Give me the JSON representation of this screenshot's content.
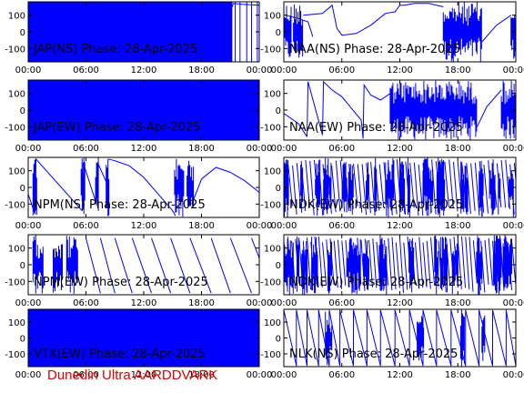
{
  "footer": "Dunedin Ultra AARDDVARK",
  "colors": {
    "trace": "#0000ff",
    "footer": "#e00000",
    "axis": "#000000"
  },
  "chart_data": [
    {
      "type": "line",
      "title": "JAP(NS) Phase: 28-Apr-2025",
      "xlim": [
        0,
        24
      ],
      "ylim": [
        -180,
        180
      ],
      "yticks": [
        100,
        0,
        -100
      ],
      "xticks": [
        "00:00",
        "06:00",
        "12:00",
        "18:00",
        "00:00"
      ],
      "regime": "noise",
      "noise_until": 21.2,
      "sparse_spikes": [
        21.5,
        22.0,
        22.7,
        23.2,
        23.8
      ],
      "series": [
        {
          "x": [
            21.2,
            21.3,
            22.2,
            24.0
          ],
          "y": [
            150,
            170,
            165,
            160
          ]
        }
      ]
    },
    {
      "type": "line",
      "title": "NAA(NS) Phase: 28-Apr-2025",
      "xlim": [
        0,
        24
      ],
      "ylim": [
        -180,
        180
      ],
      "yticks": [
        100,
        0,
        -100
      ],
      "xticks": [
        "00:00",
        "06:00",
        "12:00",
        "18:00",
        "00:00"
      ],
      "regime": "mixed",
      "noise_ranges": [
        [
          0,
          0.8
        ],
        [
          1.0,
          2.0
        ],
        [
          16.5,
          20.5
        ],
        [
          23.5,
          24
        ]
      ],
      "series": [
        {
          "x": [
            2.0,
            4.0,
            5.0,
            5.5,
            6.0,
            7.5,
            9.0,
            10.5,
            11.5,
            12.0,
            12.5,
            13.5,
            15.0,
            16.5
          ],
          "y": [
            100,
            110,
            160,
            20,
            -20,
            -10,
            40,
            110,
            120,
            160,
            160,
            170,
            170,
            150
          ]
        },
        {
          "x": [
            0.2,
            1.5,
            2.5,
            3.0
          ],
          "y": [
            100,
            80,
            60,
            -30
          ]
        },
        {
          "x": [
            20.5,
            22.0,
            23.5
          ],
          "y": [
            -60,
            40,
            100
          ]
        }
      ]
    },
    {
      "type": "line",
      "title": "JAP(EW) Phase: 28-Apr-2025",
      "xlim": [
        0,
        24
      ],
      "ylim": [
        -180,
        180
      ],
      "yticks": [
        100,
        0,
        -100
      ],
      "xticks": [
        "00:00",
        "06:00",
        "12:00",
        "18:00",
        "00:00"
      ],
      "regime": "noise",
      "noise_until": 24,
      "sparse_spikes": [],
      "series": []
    },
    {
      "type": "line",
      "title": "NAA(EW) Phase: 28-Apr-2025",
      "xlim": [
        0,
        24
      ],
      "ylim": [
        -180,
        180
      ],
      "yticks": [
        100,
        0,
        -100
      ],
      "xticks": [
        "00:00",
        "06:00",
        "12:00",
        "18:00",
        "00:00"
      ],
      "regime": "mixed",
      "noise_ranges": [
        [
          11.0,
          20.0
        ],
        [
          22.5,
          24
        ]
      ],
      "series": [
        {
          "x": [
            0,
            1.5,
            2.4
          ],
          "y": [
            -20,
            -80,
            -160
          ]
        },
        {
          "x": [
            2.4,
            2.5,
            4.0
          ],
          "y": [
            -160,
            170,
            -150
          ]
        },
        {
          "x": [
            4.0,
            4.1,
            5.0,
            6.0,
            8.0,
            8.2
          ],
          "y": [
            -150,
            170,
            120,
            80,
            -60,
            -170
          ]
        },
        {
          "x": [
            8.2,
            8.3,
            9.0,
            10.0,
            11.0
          ],
          "y": [
            -170,
            150,
            90,
            60,
            100
          ]
        },
        {
          "x": [
            20.0,
            21.0,
            22.5
          ],
          "y": [
            -100,
            20,
            120
          ]
        }
      ]
    },
    {
      "type": "line",
      "title": "NPM(NS) Phase: 28-Apr-2025",
      "xlim": [
        0,
        24
      ],
      "ylim": [
        -180,
        180
      ],
      "yticks": [
        100,
        0,
        -100
      ],
      "xticks": [
        "00:00",
        "06:00",
        "12:00",
        "18:00",
        "00:00"
      ],
      "regime": "wrap",
      "noise_ranges": [
        [
          0.5,
          0.9
        ],
        [
          5.5,
          5.9
        ],
        [
          7.0,
          7.3
        ],
        [
          8.1,
          8.4
        ],
        [
          15.2,
          16.2
        ],
        [
          16.5,
          17.2
        ]
      ],
      "series": [
        {
          "x": [
            0,
            0.7
          ],
          "y": [
            -40,
            -160
          ]
        },
        {
          "x": [
            0.7,
            0.8,
            5.6
          ],
          "y": [
            -160,
            170,
            -140
          ]
        },
        {
          "x": [
            5.6,
            5.7,
            7.1
          ],
          "y": [
            -140,
            150,
            -100
          ]
        },
        {
          "x": [
            7.1,
            7.2,
            8.2
          ],
          "y": [
            -100,
            150,
            20
          ]
        },
        {
          "x": [
            8.3,
            9.0,
            10.5,
            12.0,
            13.5,
            15.0,
            15.3
          ],
          "y": [
            170,
            160,
            130,
            60,
            -40,
            -140,
            -170
          ]
        },
        {
          "x": [
            17.0,
            18.0,
            19.5,
            21.0,
            22.5,
            24.0
          ],
          "y": [
            -100,
            50,
            120,
            90,
            40,
            -30
          ]
        }
      ]
    },
    {
      "type": "line",
      "title": "NDK(EW) Phase: 28-Apr-2025",
      "xlim": [
        0,
        24
      ],
      "ylim": [
        -180,
        180
      ],
      "yticks": [
        100,
        0,
        -100
      ],
      "xticks": [
        "00:00",
        "06:00",
        "12:00",
        "18:00",
        "00:00"
      ],
      "regime": "dense_wrap",
      "period": 0.45,
      "series": []
    },
    {
      "type": "line",
      "title": "NPM(EW) Phase: 28-Apr-2025",
      "xlim": [
        0,
        24
      ],
      "ylim": [
        -180,
        180
      ],
      "yticks": [
        100,
        0,
        -100
      ],
      "xticks": [
        "00:00",
        "06:00",
        "12:00",
        "18:00",
        "00:00"
      ],
      "regime": "wrap",
      "noise_ranges": [
        [
          0.5,
          1.6
        ],
        [
          2.6,
          3.6
        ],
        [
          4.0,
          5.2
        ]
      ],
      "series": [
        {
          "x": [
            6.0,
            7.5
          ],
          "y": [
            160,
            -170
          ]
        },
        {
          "x": [
            7.5,
            9.0
          ],
          "y": [
            160,
            -170
          ]
        },
        {
          "x": [
            9.0,
            10.8
          ],
          "y": [
            160,
            -170
          ]
        },
        {
          "x": [
            10.8,
            12.8
          ],
          "y": [
            160,
            -170
          ]
        },
        {
          "x": [
            12.8,
            14.8
          ],
          "y": [
            160,
            -170
          ]
        },
        {
          "x": [
            14.8,
            16.8
          ],
          "y": [
            160,
            -170
          ]
        },
        {
          "x": [
            16.8,
            19.0
          ],
          "y": [
            160,
            -170
          ]
        },
        {
          "x": [
            19.0,
            21.0
          ],
          "y": [
            160,
            -170
          ]
        },
        {
          "x": [
            21.0,
            23.2
          ],
          "y": [
            160,
            -170
          ]
        },
        {
          "x": [
            23.2,
            24.0
          ],
          "y": [
            160,
            40
          ]
        }
      ]
    },
    {
      "type": "line",
      "title": "NDK(EW) Phase: 28-Apr-2025",
      "xlim": [
        0,
        24
      ],
      "ylim": [
        -180,
        180
      ],
      "yticks": [
        100,
        0,
        -100
      ],
      "xticks": [
        "00:00",
        "06:00",
        "12:00",
        "18:00",
        "00:00"
      ],
      "regime": "dense_wrap",
      "period": 0.4,
      "series": []
    },
    {
      "type": "line",
      "title": "VTX(EW) Phase: 28-Apr-2025",
      "xlim": [
        0,
        24
      ],
      "ylim": [
        -180,
        180
      ],
      "yticks": [
        100,
        0,
        -100
      ],
      "xticks": [
        "00:00",
        "06:00",
        "12:00",
        "18:00",
        "00:00"
      ],
      "regime": "noise",
      "noise_until": 24,
      "sparse_spikes": [],
      "series": []
    },
    {
      "type": "line",
      "title": "NLK(NS) Phase: 28-Apr-2025",
      "xlim": [
        0,
        24
      ],
      "ylim": [
        -180,
        180
      ],
      "yticks": [
        100,
        0,
        -100
      ],
      "xticks": [
        "00:00",
        "06:00",
        "12:00",
        "18:00",
        "00:00"
      ],
      "regime": "sawtooth",
      "wraps": [
        0,
        1.3,
        2.4,
        3.6,
        4.7,
        5.8,
        7.2,
        8.6,
        10.0,
        11.5,
        13.0,
        14.4,
        15.8,
        17.3,
        18.8,
        20.2,
        21.6,
        23.0,
        24.0
      ],
      "noise_ranges": [
        [
          4.3,
          5.0
        ],
        [
          13.8,
          14.5
        ],
        [
          18.3,
          18.7
        ],
        [
          20.5,
          20.8
        ]
      ],
      "series": []
    }
  ]
}
